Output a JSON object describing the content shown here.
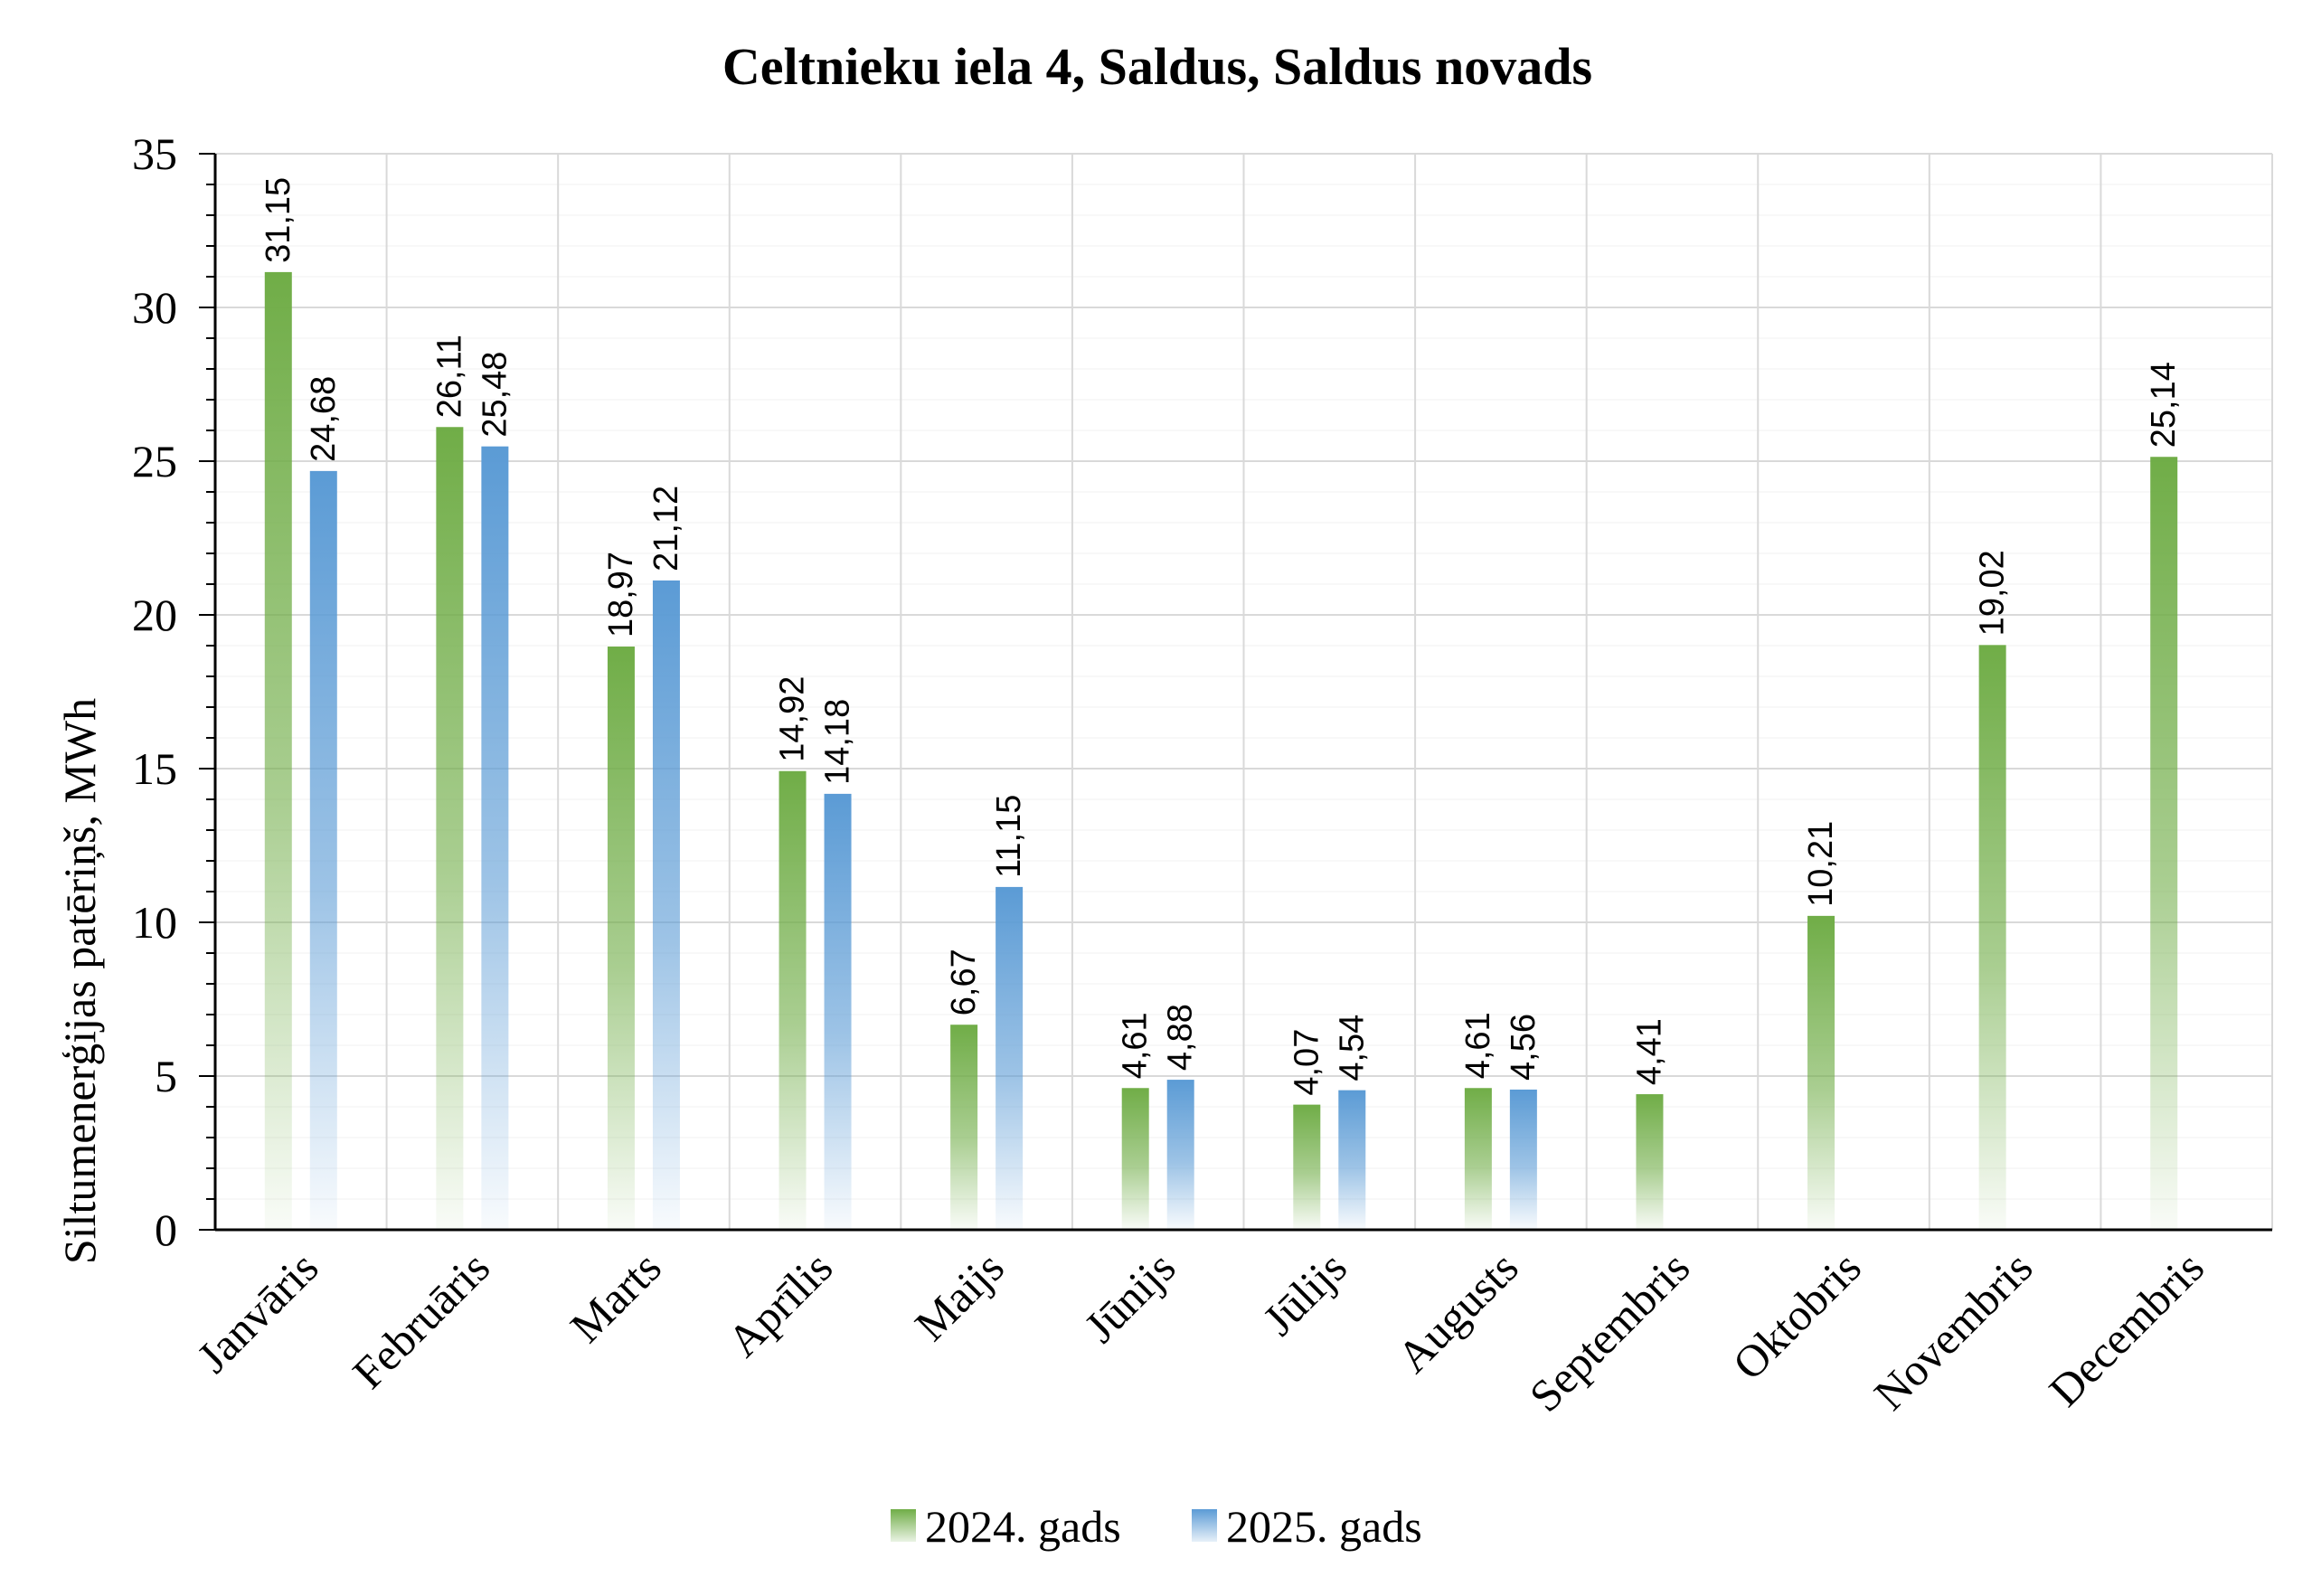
{
  "chart_data": {
    "type": "bar",
    "title": "Celtnieku iela 4, Saldus, Saldus novads",
    "ylabel": "Siltumenerģijas patēriņš, MWh",
    "xlabel": "",
    "ylim": [
      0,
      35
    ],
    "yticks": [
      0,
      5,
      10,
      15,
      20,
      25,
      30,
      35
    ],
    "grid": true,
    "legend_position": "bottom",
    "categories": [
      "Janvāris",
      "Februāris",
      "Marts",
      "Aprīlis",
      "Maijs",
      "Jūnijs",
      "Jūlijs",
      "Augusts",
      "Septembris",
      "Oktobris",
      "Novembris",
      "Decembris"
    ],
    "series": [
      {
        "name": "2024. gads",
        "color": "#70ad47",
        "values": [
          31.15,
          26.11,
          18.97,
          14.92,
          6.67,
          4.61,
          4.07,
          4.61,
          4.41,
          10.21,
          19.02,
          25.14
        ],
        "labels": [
          "31,15",
          "26,11",
          "18,97",
          "14,92",
          "6,67",
          "4,61",
          "4,07",
          "4,61",
          "4,41",
          "10,21",
          "19,02",
          "25,14"
        ]
      },
      {
        "name": "2025. gads",
        "color": "#5b9bd5",
        "values": [
          24.68,
          25.48,
          21.12,
          14.18,
          11.15,
          4.88,
          4.54,
          4.56,
          null,
          null,
          null,
          null
        ],
        "labels": [
          "24,68",
          "25,48",
          "21,12",
          "14,18",
          "11,15",
          "4,88",
          "4,54",
          "4,56",
          "",
          "",
          "",
          ""
        ]
      }
    ]
  }
}
